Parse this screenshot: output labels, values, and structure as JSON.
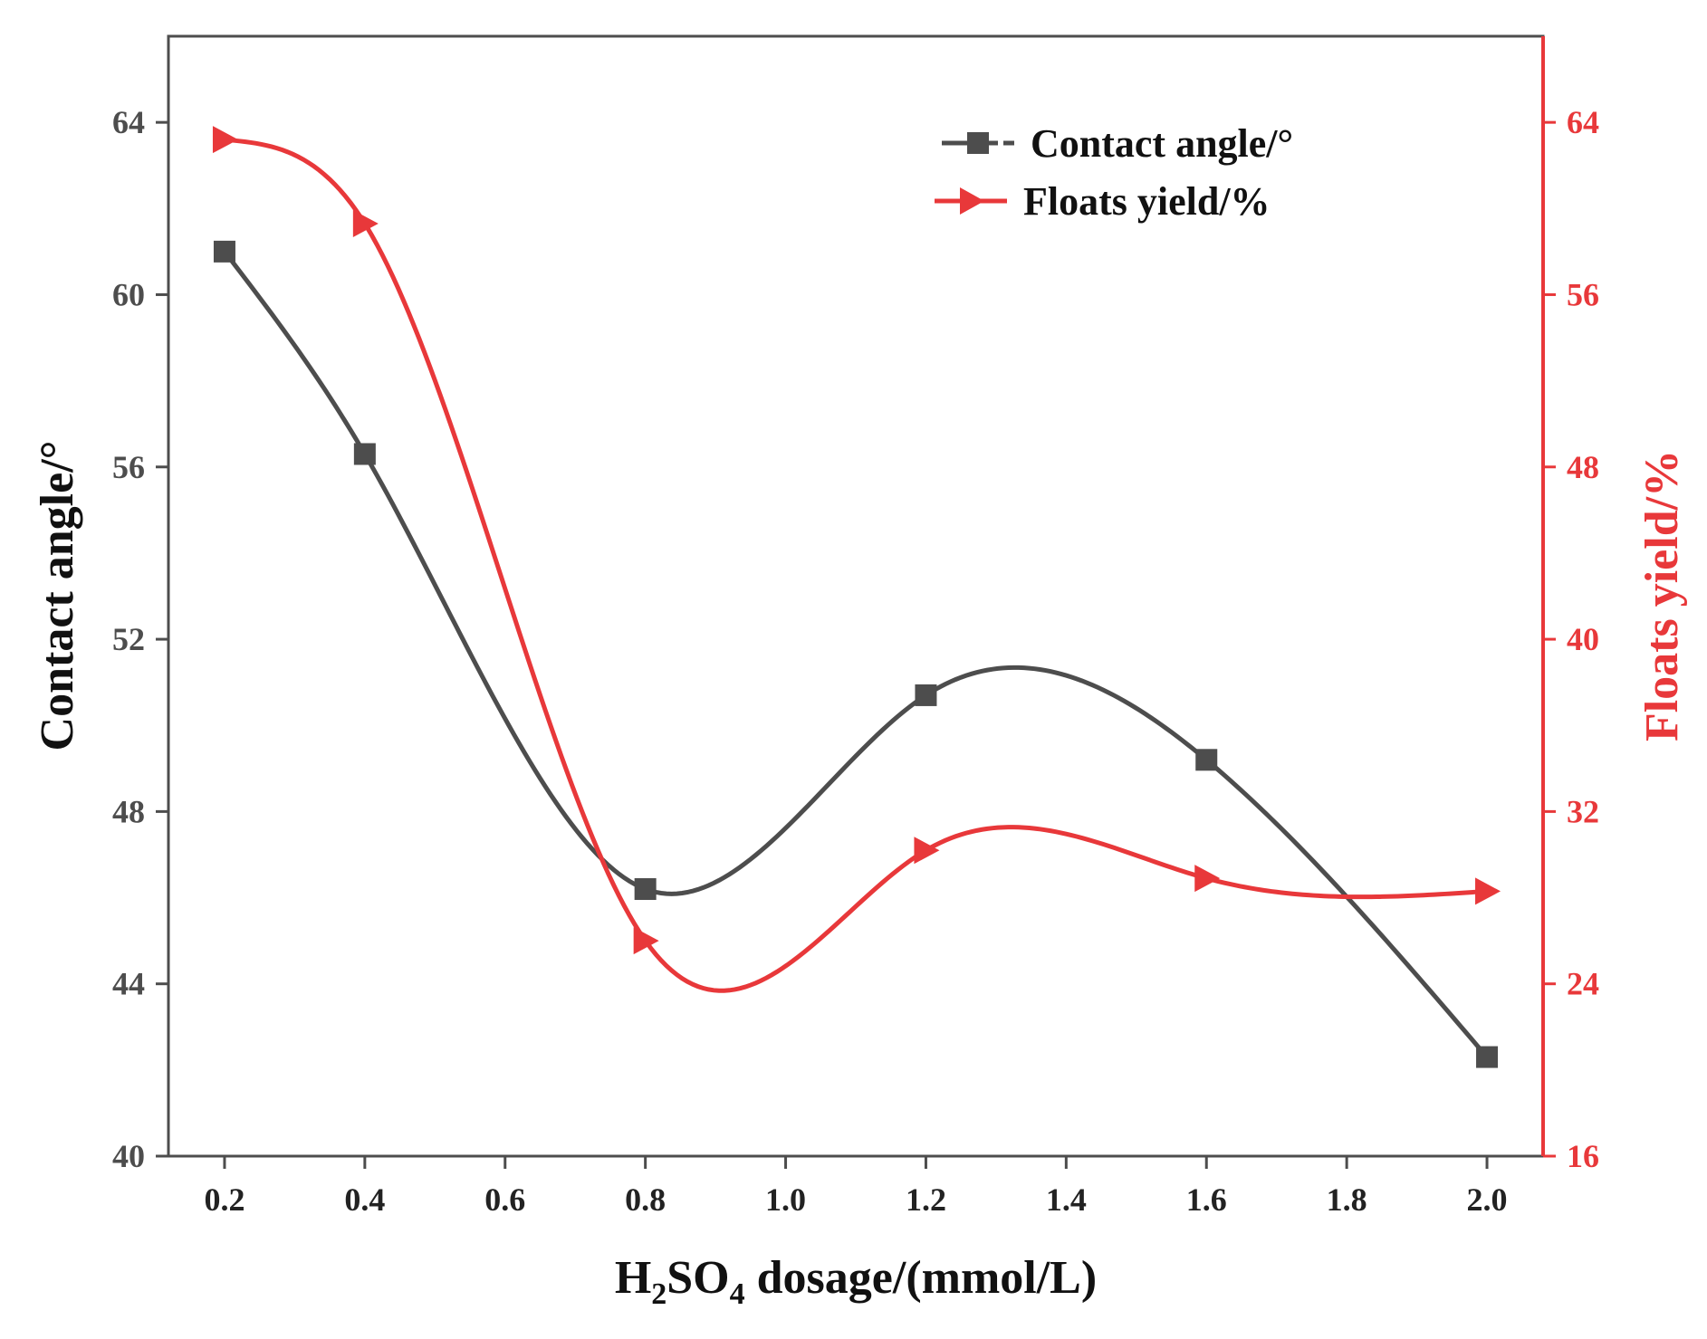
{
  "chart_data": {
    "type": "line",
    "x": [
      0.2,
      0.4,
      0.8,
      1.2,
      1.6,
      2.0
    ],
    "xlim": [
      0.12,
      2.08
    ],
    "xticks": [
      "0.2",
      "0.4",
      "0.6",
      "0.8",
      "1.0",
      "1.2",
      "1.4",
      "1.6",
      "1.8",
      "2.0"
    ],
    "xtick_values": [
      0.2,
      0.4,
      0.6,
      0.8,
      1.0,
      1.2,
      1.4,
      1.6,
      1.8,
      2.0
    ],
    "xlabel": {
      "prefix": "H",
      "sub1": "2",
      "middle": "SO",
      "sub2": "4",
      "suffix": " dosage/(mmol/L)"
    },
    "y_left": {
      "label": "Contact angle/°",
      "ylim": [
        40,
        66
      ],
      "ticks": [
        "40",
        "44",
        "48",
        "52",
        "56",
        "60",
        "64"
      ],
      "tick_values": [
        40,
        44,
        48,
        52,
        56,
        60,
        64
      ],
      "color": "#4d4d4d"
    },
    "y_right": {
      "label": "Floats yield/%",
      "ylim": [
        16,
        68
      ],
      "ticks": [
        "16",
        "24",
        "32",
        "40",
        "48",
        "56",
        "64"
      ],
      "tick_values": [
        16,
        24,
        32,
        40,
        48,
        56,
        64
      ],
      "color": "#e8383a"
    },
    "series": [
      {
        "name": "Contact angle/°",
        "axis": "left",
        "marker": "square",
        "color": "#4d4d4d",
        "values": [
          61.0,
          56.3,
          46.2,
          50.7,
          49.2,
          42.3
        ]
      },
      {
        "name": "Floats yield/%",
        "axis": "right",
        "marker": "triangle-right",
        "color": "#e8383a",
        "values": [
          63.2,
          59.3,
          26.0,
          30.2,
          28.9,
          28.3
        ]
      }
    ],
    "legend_position": "top-right"
  }
}
